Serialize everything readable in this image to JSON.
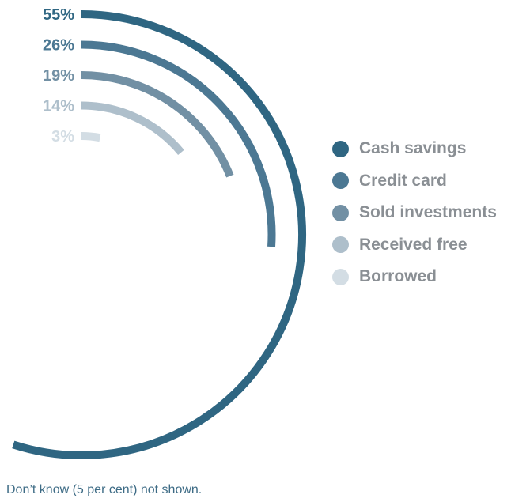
{
  "chart_data": {
    "type": "radial-bar",
    "series": [
      {
        "name": "Cash savings",
        "value": 55,
        "label": "55%",
        "color": "#2f6682"
      },
      {
        "name": "Credit card",
        "value": 26,
        "label": "26%",
        "color": "#4c7893"
      },
      {
        "name": "Sold investments",
        "value": 19,
        "label": "19%",
        "color": "#7290a4"
      },
      {
        "name": "Received free",
        "value": 14,
        "label": "14%",
        "color": "#aebfcb"
      },
      {
        "name": "Borrowed",
        "value": 3,
        "label": "3%",
        "color": "#d3dde4"
      }
    ],
    "legend_position": "right",
    "footnote": "Don’t know (5 per cent) not shown."
  }
}
